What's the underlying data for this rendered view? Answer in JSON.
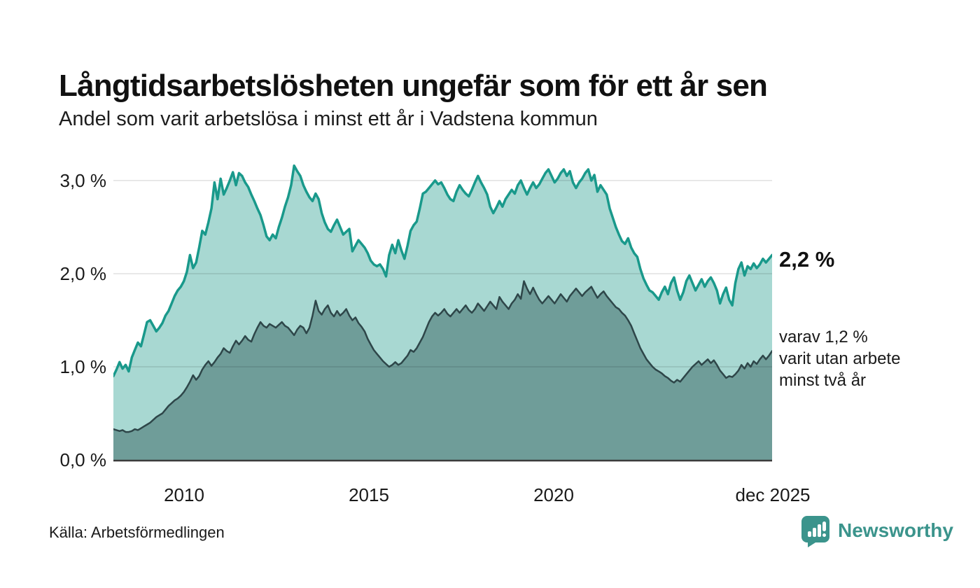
{
  "header": {
    "title": "Långtidsarbetslösheten ungefär som för ett år sen",
    "subtitle": "Andel som varit arbetslösa i minst ett år i Vadstena kommun"
  },
  "axes": {
    "y_ticks": [
      "3,0 %",
      "2,0 %",
      "1,0 %",
      "0,0 %"
    ],
    "x_ticks": [
      "2010",
      "2015",
      "2020",
      "dec 2025"
    ]
  },
  "annotations": {
    "latest_total": "2,2 %",
    "sub_note": "varav 1,2 %\nvarit utan arbete\nminst två år"
  },
  "footer": {
    "source": "Källa: Arbetsförmedlingen",
    "brand": "Newsworthy"
  },
  "colors": {
    "text": "#1a1a1a",
    "grid_overlay": "rgba(0,0,0,0.12)",
    "baseline": "#3b3b3b",
    "accent_line": "#19998b",
    "light_fill": "#a8d8d2",
    "dark_line": "#2e4649",
    "dark_fill": "#6f9d99",
    "brand": "#3b948c"
  },
  "chart_data": {
    "type": "area",
    "title": "Långtidsarbetslösheten ungefär som för ett år sen",
    "subtitle": "Andel som varit arbetslösa i minst ett år i Vadstena kommun",
    "unit": "%",
    "x_start": "2008-01",
    "x_end": "2025-12",
    "frequency": "monthly",
    "x_tick_labels": [
      "2010",
      "2015",
      "2020",
      "dec 2025"
    ],
    "ylim": [
      0,
      3.21
    ],
    "y_gridlines": [
      1.0,
      2.0,
      3.0
    ],
    "grid": true,
    "legend_position": "right-annotations",
    "latest": {
      "minst_ett_ar_pct": 2.2,
      "minst_tva_ar_pct": 1.2
    },
    "series": [
      {
        "name": "Andel arbetslösa minst ett år",
        "color": "#19998b",
        "fill": "#a8d8d2",
        "values": [
          0.9,
          0.97,
          1.05,
          0.98,
          1.02,
          0.95,
          1.1,
          1.18,
          1.26,
          1.22,
          1.35,
          1.48,
          1.5,
          1.44,
          1.38,
          1.42,
          1.47,
          1.55,
          1.6,
          1.68,
          1.76,
          1.82,
          1.86,
          1.92,
          2.02,
          2.2,
          2.06,
          2.12,
          2.28,
          2.46,
          2.42,
          2.55,
          2.7,
          2.98,
          2.8,
          3.02,
          2.85,
          2.92,
          3.0,
          3.09,
          2.95,
          3.08,
          3.05,
          2.98,
          2.93,
          2.85,
          2.78,
          2.7,
          2.63,
          2.52,
          2.4,
          2.36,
          2.42,
          2.38,
          2.5,
          2.6,
          2.72,
          2.82,
          2.95,
          3.16,
          3.1,
          3.05,
          2.95,
          2.88,
          2.82,
          2.78,
          2.86,
          2.8,
          2.65,
          2.55,
          2.48,
          2.45,
          2.52,
          2.58,
          2.5,
          2.42,
          2.45,
          2.48,
          2.24,
          2.3,
          2.36,
          2.32,
          2.28,
          2.22,
          2.14,
          2.1,
          2.08,
          2.1,
          2.05,
          1.97,
          2.2,
          2.31,
          2.22,
          2.36,
          2.25,
          2.16,
          2.3,
          2.46,
          2.52,
          2.56,
          2.7,
          2.86,
          2.88,
          2.92,
          2.96,
          3.0,
          2.96,
          2.98,
          2.92,
          2.85,
          2.8,
          2.78,
          2.88,
          2.95,
          2.9,
          2.86,
          2.83,
          2.9,
          2.98,
          3.05,
          2.98,
          2.92,
          2.85,
          2.72,
          2.65,
          2.71,
          2.78,
          2.72,
          2.8,
          2.85,
          2.9,
          2.86,
          2.95,
          3.0,
          2.92,
          2.85,
          2.92,
          2.98,
          2.92,
          2.96,
          3.02,
          3.08,
          3.12,
          3.05,
          2.98,
          3.02,
          3.08,
          3.12,
          3.05,
          3.1,
          2.98,
          2.92,
          2.98,
          3.02,
          3.08,
          3.12,
          3.0,
          3.06,
          2.88,
          2.95,
          2.9,
          2.85,
          2.7,
          2.6,
          2.5,
          2.42,
          2.35,
          2.32,
          2.38,
          2.28,
          2.22,
          2.18,
          2.05,
          1.95,
          1.88,
          1.82,
          1.8,
          1.76,
          1.72,
          1.8,
          1.86,
          1.78,
          1.9,
          1.96,
          1.82,
          1.72,
          1.8,
          1.92,
          1.98,
          1.9,
          1.82,
          1.88,
          1.94,
          1.86,
          1.92,
          1.96,
          1.9,
          1.82,
          1.68,
          1.78,
          1.85,
          1.72,
          1.66,
          1.9,
          2.05,
          2.12,
          1.98,
          2.08,
          2.05,
          2.11,
          2.06,
          2.1,
          2.16,
          2.12,
          2.16,
          2.2
        ]
      },
      {
        "name": "varav utan arbete minst två år",
        "color": "#2e4649",
        "fill": "#6f9d99",
        "values": [
          0.33,
          0.32,
          0.31,
          0.32,
          0.3,
          0.3,
          0.31,
          0.33,
          0.32,
          0.34,
          0.36,
          0.38,
          0.4,
          0.43,
          0.46,
          0.48,
          0.5,
          0.54,
          0.58,
          0.61,
          0.64,
          0.66,
          0.69,
          0.73,
          0.78,
          0.84,
          0.91,
          0.86,
          0.9,
          0.97,
          1.02,
          1.06,
          1.01,
          1.05,
          1.1,
          1.14,
          1.2,
          1.17,
          1.15,
          1.22,
          1.28,
          1.24,
          1.28,
          1.33,
          1.29,
          1.27,
          1.35,
          1.42,
          1.48,
          1.44,
          1.42,
          1.46,
          1.44,
          1.42,
          1.45,
          1.48,
          1.44,
          1.42,
          1.38,
          1.34,
          1.4,
          1.44,
          1.42,
          1.36,
          1.42,
          1.55,
          1.71,
          1.6,
          1.56,
          1.62,
          1.66,
          1.58,
          1.54,
          1.6,
          1.55,
          1.58,
          1.62,
          1.55,
          1.5,
          1.53,
          1.47,
          1.43,
          1.38,
          1.3,
          1.24,
          1.18,
          1.14,
          1.1,
          1.06,
          1.03,
          1.0,
          1.02,
          1.05,
          1.02,
          1.04,
          1.08,
          1.12,
          1.18,
          1.16,
          1.2,
          1.26,
          1.32,
          1.4,
          1.48,
          1.54,
          1.58,
          1.55,
          1.58,
          1.62,
          1.57,
          1.54,
          1.58,
          1.62,
          1.58,
          1.62,
          1.66,
          1.61,
          1.58,
          1.62,
          1.68,
          1.64,
          1.6,
          1.65,
          1.7,
          1.66,
          1.62,
          1.75,
          1.7,
          1.66,
          1.62,
          1.68,
          1.72,
          1.78,
          1.73,
          1.92,
          1.84,
          1.78,
          1.85,
          1.78,
          1.72,
          1.68,
          1.72,
          1.76,
          1.72,
          1.68,
          1.73,
          1.78,
          1.74,
          1.7,
          1.76,
          1.8,
          1.84,
          1.8,
          1.76,
          1.8,
          1.83,
          1.86,
          1.8,
          1.74,
          1.78,
          1.81,
          1.76,
          1.72,
          1.68,
          1.64,
          1.62,
          1.58,
          1.55,
          1.5,
          1.44,
          1.36,
          1.28,
          1.2,
          1.14,
          1.08,
          1.04,
          1.0,
          0.97,
          0.95,
          0.93,
          0.9,
          0.88,
          0.85,
          0.83,
          0.86,
          0.84,
          0.88,
          0.92,
          0.96,
          1.0,
          1.03,
          1.06,
          1.02,
          1.05,
          1.08,
          1.04,
          1.07,
          1.02,
          0.96,
          0.92,
          0.88,
          0.9,
          0.89,
          0.92,
          0.96,
          1.02,
          0.98,
          1.04,
          1.0,
          1.06,
          1.03,
          1.08,
          1.12,
          1.08,
          1.12,
          1.17
        ]
      }
    ]
  }
}
